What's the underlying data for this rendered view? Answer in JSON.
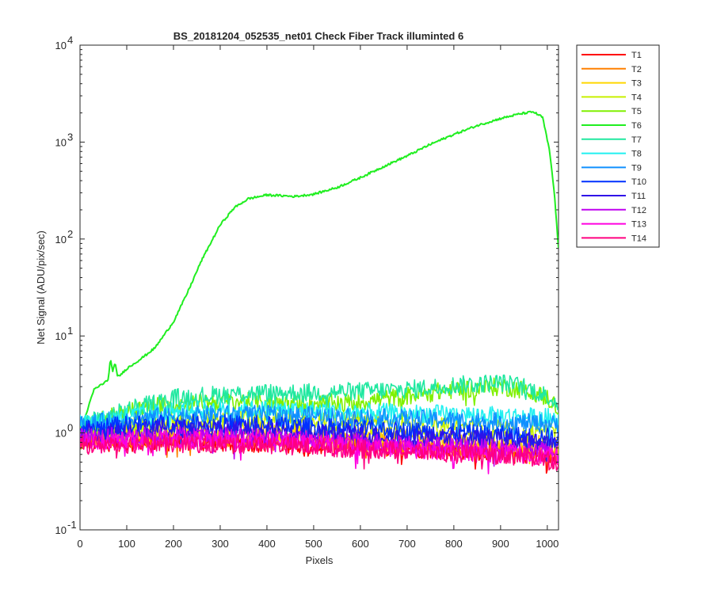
{
  "chart_data": {
    "type": "line",
    "title": "BS_20181204_052535_net01    Check Fiber     Track illuminted 6",
    "xlabel": "Pixels",
    "ylabel": "Net Signal (ADU/pix/sec)",
    "xlim": [
      0,
      1024
    ],
    "ylim": [
      0.1,
      10000
    ],
    "yscale": "log",
    "grid": false,
    "legend_position": "outside-right",
    "x_ticks": [
      0,
      100,
      200,
      300,
      400,
      500,
      600,
      700,
      800,
      900,
      1000
    ],
    "y_ticks": [
      {
        "value": 0.1,
        "base": "10",
        "exp": "-1"
      },
      {
        "value": 1,
        "base": "10",
        "exp": "0"
      },
      {
        "value": 10,
        "base": "10",
        "exp": "1"
      },
      {
        "value": 100,
        "base": "10",
        "exp": "2"
      },
      {
        "value": 1000,
        "base": "10",
        "exp": "3"
      },
      {
        "value": 10000,
        "base": "10",
        "exp": "4"
      }
    ],
    "noise_amplitude": 0.22,
    "series": [
      {
        "name": "T1",
        "color": "#ff0000",
        "x": [
          0,
          200,
          400,
          500,
          600,
          800,
          1000,
          1024
        ],
        "y": [
          0.8,
          0.8,
          0.78,
          0.76,
          0.72,
          0.66,
          0.6,
          0.55
        ]
      },
      {
        "name": "T2",
        "color": "#ff8000",
        "x": [
          0,
          200,
          400,
          500,
          600,
          800,
          1000,
          1024
        ],
        "y": [
          0.85,
          0.9,
          0.88,
          0.85,
          0.8,
          0.72,
          0.65,
          0.6
        ]
      },
      {
        "name": "T3",
        "color": "#ffd700",
        "x": [
          0,
          200,
          400,
          500,
          600,
          800,
          1000,
          1024
        ],
        "y": [
          0.95,
          1.05,
          1.05,
          1.0,
          0.95,
          0.85,
          0.75,
          0.7
        ]
      },
      {
        "name": "T4",
        "color": "#c8f000",
        "x": [
          0,
          200,
          400,
          500,
          600,
          700,
          800,
          900,
          1000,
          1024
        ],
        "y": [
          1.0,
          1.3,
          1.4,
          1.35,
          1.3,
          1.25,
          1.15,
          1.1,
          1.05,
          1.0
        ]
      },
      {
        "name": "T5",
        "color": "#80f000",
        "x": [
          0,
          100,
          200,
          300,
          400,
          500,
          600,
          700,
          800,
          900,
          950,
          1000,
          1024
        ],
        "y": [
          1.1,
          1.7,
          2.0,
          2.1,
          2.1,
          2.0,
          2.1,
          2.4,
          2.8,
          3.0,
          2.8,
          2.3,
          1.8
        ]
      },
      {
        "name": "T6",
        "color": "#20ee20",
        "x": [
          0,
          30,
          60,
          65,
          70,
          75,
          80,
          85,
          100,
          130,
          160,
          200,
          230,
          260,
          300,
          330,
          360,
          400,
          430,
          460,
          500,
          550,
          600,
          650,
          700,
          750,
          800,
          850,
          900,
          940,
          970,
          990,
          1005,
          1015,
          1024
        ],
        "y": [
          1.0,
          2.8,
          3.5,
          5.8,
          4.2,
          5.5,
          3.8,
          3.9,
          4.6,
          5.8,
          7.5,
          14,
          28,
          60,
          140,
          210,
          260,
          285,
          280,
          275,
          290,
          340,
          430,
          560,
          720,
          950,
          1200,
          1480,
          1750,
          1950,
          2050,
          1800,
          800,
          300,
          80
        ]
      },
      {
        "name": "T7",
        "color": "#20e8a0",
        "x": [
          0,
          100,
          200,
          300,
          400,
          500,
          600,
          700,
          800,
          900,
          950,
          1000,
          1024
        ],
        "y": [
          1.2,
          1.7,
          2.3,
          2.5,
          2.6,
          2.6,
          2.7,
          2.8,
          3.1,
          3.3,
          3.0,
          2.4,
          2.0
        ]
      },
      {
        "name": "T8",
        "color": "#20f0f0",
        "x": [
          0,
          100,
          200,
          300,
          400,
          500,
          600,
          700,
          800,
          900,
          1000,
          1024
        ],
        "y": [
          1.25,
          1.5,
          1.7,
          1.75,
          1.75,
          1.7,
          1.65,
          1.6,
          1.55,
          1.5,
          1.45,
          1.4
        ]
      },
      {
        "name": "T9",
        "color": "#1090ff",
        "x": [
          0,
          100,
          200,
          300,
          400,
          500,
          600,
          700,
          800,
          900,
          1000,
          1024
        ],
        "y": [
          1.2,
          1.4,
          1.5,
          1.55,
          1.55,
          1.5,
          1.45,
          1.4,
          1.35,
          1.3,
          1.25,
          1.2
        ]
      },
      {
        "name": "T10",
        "color": "#0030ff",
        "x": [
          0,
          100,
          200,
          300,
          400,
          500,
          600,
          700,
          800,
          900,
          1000,
          1024
        ],
        "y": [
          1.1,
          1.2,
          1.25,
          1.25,
          1.2,
          1.15,
          1.1,
          1.05,
          1.0,
          0.95,
          0.9,
          0.85
        ]
      },
      {
        "name": "T11",
        "color": "#3010e8",
        "x": [
          0,
          200,
          400,
          500,
          600,
          800,
          1000,
          1024
        ],
        "y": [
          1.0,
          1.1,
          1.05,
          1.0,
          0.95,
          0.88,
          0.8,
          0.75
        ]
      },
      {
        "name": "T12",
        "color": "#c000f0",
        "x": [
          0,
          200,
          400,
          500,
          600,
          800,
          1000,
          1024
        ],
        "y": [
          0.9,
          0.95,
          0.9,
          0.85,
          0.8,
          0.72,
          0.65,
          0.6
        ]
      },
      {
        "name": "T13",
        "color": "#ff00e0",
        "x": [
          0,
          200,
          400,
          500,
          600,
          800,
          1000,
          1024
        ],
        "y": [
          0.82,
          0.85,
          0.82,
          0.78,
          0.72,
          0.65,
          0.58,
          0.55
        ]
      },
      {
        "name": "T14",
        "color": "#ff0080",
        "x": [
          0,
          200,
          400,
          500,
          600,
          800,
          1000,
          1024
        ],
        "y": [
          0.75,
          0.78,
          0.76,
          0.72,
          0.68,
          0.62,
          0.55,
          0.5
        ]
      }
    ]
  }
}
